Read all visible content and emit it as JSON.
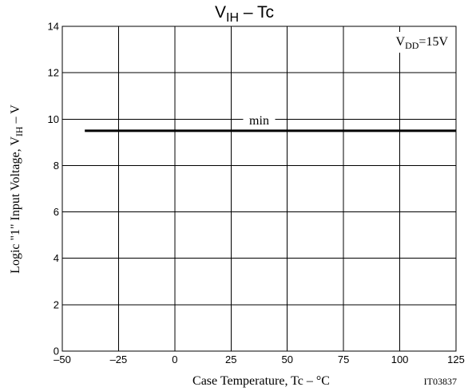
{
  "chart_data": {
    "type": "line",
    "title_main": "V",
    "title_sub": "IH",
    "title_rest": " – Tc",
    "xlabel": "Case Temperature, Tc  –  °C",
    "ylabel_main": "Logic \"1\" Input Voltage, V",
    "ylabel_sub": "IH",
    "ylabel_rest": "  –  V",
    "xlim": [
      -50,
      125
    ],
    "ylim": [
      0,
      14
    ],
    "x_ticks": [
      -50,
      -25,
      0,
      25,
      50,
      75,
      100,
      125
    ],
    "x_tick_labels": [
      "–50",
      "–25",
      "0",
      "25",
      "50",
      "75",
      "100",
      "125"
    ],
    "y_ticks": [
      0,
      2,
      4,
      6,
      8,
      10,
      12,
      14
    ],
    "y_tick_labels": [
      "0",
      "2",
      "4",
      "6",
      "8",
      "10",
      "12",
      "14"
    ],
    "grid": true,
    "series": [
      {
        "name": "min",
        "x": [
          -40,
          125
        ],
        "y": [
          9.5,
          9.5
        ]
      }
    ],
    "condition_main": "V",
    "condition_sub": "DD",
    "condition_rest": "=15V",
    "figure_code": "IT03837"
  }
}
